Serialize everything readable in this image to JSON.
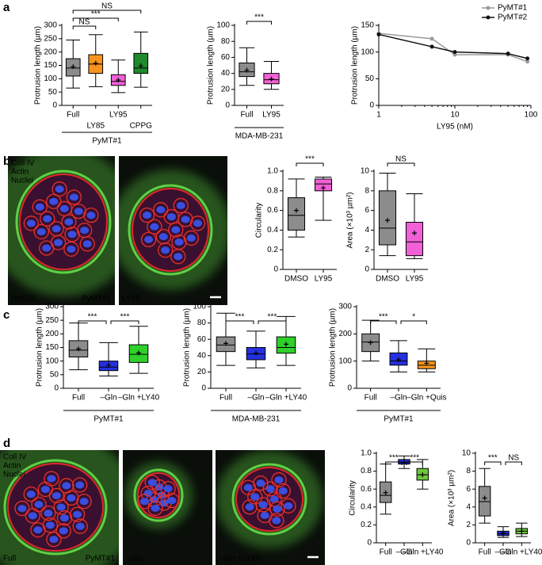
{
  "panels": [
    "a",
    "b",
    "c",
    "d"
  ],
  "images": [
    {
      "channels": [
        "Coll IV",
        "Actin",
        "Nuclei"
      ],
      "label": "DMSO",
      "sublabel": "PyMT#1"
    },
    {
      "label": "LY95"
    },
    {
      "channels": [
        "Coll IV",
        "Actin",
        "Nuclei"
      ],
      "label": "Full",
      "sublabel": "PyMT#1"
    },
    {
      "label": "–Gln"
    },
    {
      "label": "–Gln +LY40"
    }
  ],
  "chart_data": [
    {
      "type": "box",
      "y_label": "Protrusion length (µm)",
      "ylim": [
        0,
        300
      ],
      "yticks": [
        0,
        50,
        100,
        150,
        200,
        250,
        300
      ],
      "categories": [
        "Full",
        "LY85",
        "LY95",
        "CPPG"
      ],
      "colors": [
        "#8c8c8c",
        "#f7941d",
        "#f160d6",
        "#1e8a2b"
      ],
      "label_colors": [
        "#000000",
        "#f7941d",
        "#e040c8",
        "#2d7a1f"
      ],
      "group": "PyMT#1",
      "boxes": [
        {
          "min": 65,
          "q1": 110,
          "median": 140,
          "q3": 175,
          "max": 245,
          "mean": 145
        },
        {
          "min": 70,
          "q1": 120,
          "median": 155,
          "q3": 190,
          "max": 265,
          "mean": 158
        },
        {
          "min": 48,
          "q1": 75,
          "median": 90,
          "q3": 115,
          "max": 170,
          "mean": 95
        },
        {
          "min": 68,
          "q1": 120,
          "median": 140,
          "q3": 195,
          "max": 275,
          "mean": 148
        }
      ],
      "comparisons": [
        {
          "between": [
            "Full",
            "LY85"
          ],
          "label": "NS"
        },
        {
          "between": [
            "Full",
            "LY95"
          ],
          "label": "***"
        },
        {
          "between": [
            "Full",
            "CPPG"
          ],
          "label": "NS"
        }
      ]
    },
    {
      "type": "box",
      "y_label": "Protrusion length (µm)",
      "ylim": [
        0,
        100
      ],
      "yticks": [
        0,
        20,
        40,
        60,
        80,
        100
      ],
      "categories": [
        "Full",
        "LY95"
      ],
      "colors": [
        "#8c8c8c",
        "#f160d6"
      ],
      "label_colors": [
        "#000000",
        "#e040c8"
      ],
      "group": "MDA-MB-231",
      "boxes": [
        {
          "min": 25,
          "q1": 36,
          "median": 42,
          "q3": 53,
          "max": 72,
          "mean": 44
        },
        {
          "min": 20,
          "q1": 27,
          "median": 32,
          "q3": 40,
          "max": 55,
          "mean": 33
        }
      ],
      "comparisons": [
        {
          "between": [
            "Full",
            "LY95"
          ],
          "label": "***"
        }
      ]
    },
    {
      "type": "line",
      "y_label": "Protrusion length (µm)",
      "x_label": "LY95 (nM)",
      "xscale": "log",
      "xlim": [
        1,
        100
      ],
      "xticks": [
        1,
        10,
        100
      ],
      "ylim": [
        0,
        150
      ],
      "yticks": [
        0,
        50,
        100,
        150
      ],
      "legend": "top-right",
      "x": [
        1,
        5,
        10,
        50,
        90
      ],
      "series": [
        {
          "name": "PyMT#1",
          "color": "#9a9a9a",
          "values": [
            135,
            125,
            95,
            95,
            82
          ]
        },
        {
          "name": "PyMT#2",
          "color": "#111111",
          "values": [
            133,
            110,
            100,
            97,
            88
          ]
        }
      ]
    },
    {
      "type": "box",
      "y_label": "Circularity",
      "ylim": [
        0,
        1
      ],
      "yticks": [
        0,
        0.2,
        0.4,
        0.6,
        0.8,
        {
          "value": 1,
          "label": "1.0"
        }
      ],
      "categories": [
        "DMSO",
        "LY95"
      ],
      "colors": [
        "#8c8c8c",
        "#f160d6"
      ],
      "label_colors": [
        "#000000",
        "#e040c8"
      ],
      "boxes": [
        {
          "min": 0.33,
          "q1": 0.4,
          "median": 0.55,
          "q3": 0.73,
          "max": 0.92,
          "mean": 0.6
        },
        {
          "min": 0.5,
          "q1": 0.8,
          "median": 0.87,
          "q3": 0.92,
          "max": 0.94,
          "mean": 0.83
        }
      ],
      "comparisons": [
        {
          "between": [
            "DMSO",
            "LY95"
          ],
          "label": "***"
        }
      ]
    },
    {
      "type": "box",
      "y_label": "Area (×10³ µm²)",
      "ylim": [
        0,
        10
      ],
      "yticks": [
        0,
        2,
        4,
        6,
        8,
        10
      ],
      "categories": [
        "DMSO",
        "LY95"
      ],
      "colors": [
        "#8c8c8c",
        "#f160d6"
      ],
      "label_colors": [
        "#000000",
        "#e040c8"
      ],
      "boxes": [
        {
          "min": 1.4,
          "q1": 2.5,
          "median": 4.2,
          "q3": 8,
          "max": 9.8,
          "mean": 5
        },
        {
          "min": 1.1,
          "q1": 1.4,
          "median": 2.8,
          "q3": 4.8,
          "max": 7.7,
          "mean": 3.7
        }
      ],
      "comparisons": [
        {
          "between": [
            "DMSO",
            "LY95"
          ],
          "label": "NS"
        }
      ]
    },
    {
      "type": "box",
      "y_label": "Protrusion length (µm)",
      "ylim": [
        0,
        300
      ],
      "yticks": [
        0,
        50,
        100,
        150,
        200,
        250,
        300
      ],
      "categories": [
        "Full",
        "–Gln",
        "–Gln +LY40"
      ],
      "colors": [
        "#8c8c8c",
        "#2530e0",
        "#2fd02a"
      ],
      "label_colors": [
        "#000000",
        "#1f2bd6",
        "#22a81e"
      ],
      "group": "PyMT#1",
      "boxes": [
        {
          "min": 68,
          "q1": 115,
          "median": 140,
          "q3": 175,
          "max": 240,
          "mean": 145
        },
        {
          "min": 45,
          "q1": 65,
          "median": 78,
          "q3": 100,
          "max": 168,
          "mean": 85
        },
        {
          "min": 55,
          "q1": 95,
          "median": 125,
          "q3": 160,
          "max": 228,
          "mean": 130
        }
      ],
      "comparisons": [
        {
          "between": [
            "Full",
            "–Gln"
          ],
          "label": "***"
        },
        {
          "between": [
            "–Gln",
            "–Gln +LY40"
          ],
          "label": "***"
        }
      ]
    },
    {
      "type": "box",
      "y_label": "Protrusion length (µm)",
      "ylim": [
        0,
        100
      ],
      "yticks": [
        0,
        20,
        40,
        60,
        80,
        100
      ],
      "categories": [
        "Full",
        "–Gln",
        "–Gln +LY40"
      ],
      "colors": [
        "#8c8c8c",
        "#2530e0",
        "#2fd02a"
      ],
      "label_colors": [
        "#000000",
        "#1f2bd6",
        "#22a81e"
      ],
      "group": "MDA-MB-231",
      "boxes": [
        {
          "min": 28,
          "q1": 45,
          "median": 53,
          "q3": 63,
          "max": 92,
          "mean": 55
        },
        {
          "min": 25,
          "q1": 35,
          "median": 42,
          "q3": 50,
          "max": 70,
          "mean": 43
        },
        {
          "min": 28,
          "q1": 43,
          "median": 50,
          "q3": 63,
          "max": 88,
          "mean": 54
        }
      ],
      "comparisons": [
        {
          "between": [
            "Full",
            "–Gln"
          ],
          "label": "***"
        },
        {
          "between": [
            "–Gln",
            "–Gln +LY40"
          ],
          "label": "***"
        }
      ]
    },
    {
      "type": "box",
      "y_label": "Protrusion length (µm)",
      "ylim": [
        0,
        300
      ],
      "yticks": [
        0,
        100,
        200,
        300
      ],
      "categories": [
        "Full",
        "–Gln",
        "–Gln +Quis"
      ],
      "colors": [
        "#8c8c8c",
        "#2530e0",
        "#f7941d"
      ],
      "label_colors": [
        "#000000",
        "#1f2bd6",
        "#f7941d"
      ],
      "group": "PyMT#1",
      "boxes": [
        {
          "min": 100,
          "q1": 135,
          "median": 170,
          "q3": 200,
          "max": 250,
          "mean": 168
        },
        {
          "min": 60,
          "q1": 85,
          "median": 100,
          "q3": 130,
          "max": 175,
          "mean": 105
        },
        {
          "min": 60,
          "q1": 72,
          "median": 85,
          "q3": 100,
          "max": 145,
          "mean": 92
        }
      ],
      "comparisons": [
        {
          "between": [
            "Full",
            "–Gln"
          ],
          "label": "***"
        },
        {
          "between": [
            "–Gln",
            "–Gln +Quis"
          ],
          "label": "*"
        }
      ]
    },
    {
      "type": "box",
      "y_label": "Circularity",
      "ylim": [
        0,
        1
      ],
      "yticks": [
        0,
        0.2,
        0.4,
        0.6,
        0.8,
        {
          "value": 1,
          "label": "1.0"
        }
      ],
      "categories": [
        "Full",
        "–Gln",
        "–Gln +LY40"
      ],
      "colors": [
        "#8c8c8c",
        "#2530e0",
        "#6cc63a"
      ],
      "label_colors": [
        "#000000",
        "#1f2bd6",
        "#5cb82a"
      ],
      "boxes": [
        {
          "min": 0.32,
          "q1": 0.45,
          "median": 0.53,
          "q3": 0.68,
          "max": 0.88,
          "mean": 0.56
        },
        {
          "min": 0.83,
          "q1": 0.88,
          "median": 0.9,
          "q3": 0.93,
          "max": 0.97,
          "mean": 0.9
        },
        {
          "min": 0.6,
          "q1": 0.7,
          "median": 0.76,
          "q3": 0.83,
          "max": 0.93,
          "mean": 0.76
        }
      ],
      "comparisons": [
        {
          "between": [
            "Full",
            "–Gln"
          ],
          "label": "***"
        },
        {
          "between": [
            "–Gln",
            "–Gln +LY40"
          ],
          "label": "***"
        }
      ]
    },
    {
      "type": "box",
      "y_label": "Area (×10³ µm²)",
      "ylim": [
        0,
        10
      ],
      "yticks": [
        0,
        2,
        4,
        6,
        8,
        10
      ],
      "categories": [
        "Full",
        "–Gln",
        "–Gln +LY40"
      ],
      "colors": [
        "#8c8c8c",
        "#2530e0",
        "#6cc63a"
      ],
      "label_colors": [
        "#000000",
        "#1f2bd6",
        "#5cb82a"
      ],
      "boxes": [
        {
          "min": 2.2,
          "q1": 3,
          "median": 4.6,
          "q3": 6.3,
          "max": 8.3,
          "mean": 5
        },
        {
          "min": 0.6,
          "q1": 0.8,
          "median": 1,
          "q3": 1.3,
          "max": 1.8,
          "mean": 1.1
        },
        {
          "min": 0.7,
          "q1": 1,
          "median": 1.3,
          "q3": 1.6,
          "max": 2.2,
          "mean": 1.3
        }
      ],
      "comparisons": [
        {
          "between": [
            "Full",
            "–Gln"
          ],
          "label": "***"
        },
        {
          "between": [
            "–Gln",
            "–Gln +LY40"
          ],
          "label": "NS"
        }
      ]
    }
  ]
}
